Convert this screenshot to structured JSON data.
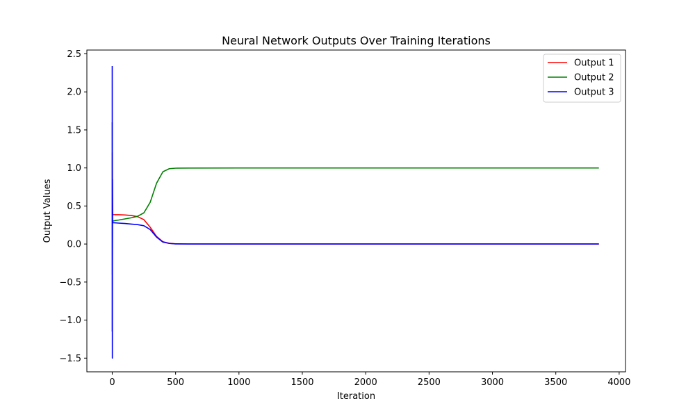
{
  "chart_data": {
    "type": "line",
    "title": "Neural Network Outputs Over Training Iterations",
    "xlabel": "Iteration",
    "ylabel": "Output Values",
    "xlim": [
      -200,
      4050
    ],
    "ylim": [
      -1.68,
      2.55
    ],
    "xticks": [
      0,
      500,
      1000,
      1500,
      2000,
      2500,
      3000,
      3500,
      4000
    ],
    "yticks": [
      -1.5,
      -1.0,
      -0.5,
      0.0,
      0.5,
      1.0,
      1.5,
      2.0,
      2.5
    ],
    "ytick_labels": [
      "−1.5",
      "−1.0",
      "−0.5",
      "0.0",
      "0.5",
      "1.0",
      "1.5",
      "2.0",
      "2.5"
    ],
    "grid": false,
    "legend_position": "top-right",
    "series": [
      {
        "name": "Output 1",
        "color": "#ff0000",
        "x": [
          0,
          1,
          2,
          3,
          4,
          10,
          50,
          100,
          150,
          200,
          250,
          300,
          350,
          400,
          450,
          500,
          600,
          1000,
          2000,
          3000,
          3840
        ],
        "y": [
          -1.15,
          1.2,
          0.55,
          0.42,
          0.39,
          0.385,
          0.385,
          0.382,
          0.375,
          0.36,
          0.32,
          0.22,
          0.1,
          0.03,
          0.01,
          0.003,
          0.001,
          0.0,
          0.0,
          0.0,
          0.0
        ]
      },
      {
        "name": "Output 2",
        "color": "#008000",
        "x": [
          0,
          1,
          2,
          3,
          4,
          10,
          50,
          100,
          150,
          200,
          250,
          300,
          350,
          400,
          450,
          500,
          600,
          1000,
          2000,
          3000,
          3840
        ],
        "y": [
          1.6,
          -0.4,
          0.25,
          0.29,
          0.3,
          0.305,
          0.315,
          0.33,
          0.345,
          0.365,
          0.41,
          0.55,
          0.8,
          0.95,
          0.99,
          0.997,
          0.999,
          1.0,
          1.0,
          1.0,
          1.0
        ]
      },
      {
        "name": "Output 3",
        "color": "#0000ff",
        "x": [
          0,
          1,
          2,
          3,
          4,
          10,
          50,
          100,
          150,
          200,
          250,
          300,
          350,
          400,
          450,
          500,
          600,
          1000,
          2000,
          3000,
          3840
        ],
        "y": [
          2.34,
          -1.5,
          0.85,
          0.3,
          0.28,
          0.28,
          0.275,
          0.27,
          0.262,
          0.255,
          0.24,
          0.19,
          0.09,
          0.025,
          0.008,
          0.002,
          0.0,
          0.0,
          0.0,
          0.0,
          0.0
        ]
      }
    ]
  }
}
